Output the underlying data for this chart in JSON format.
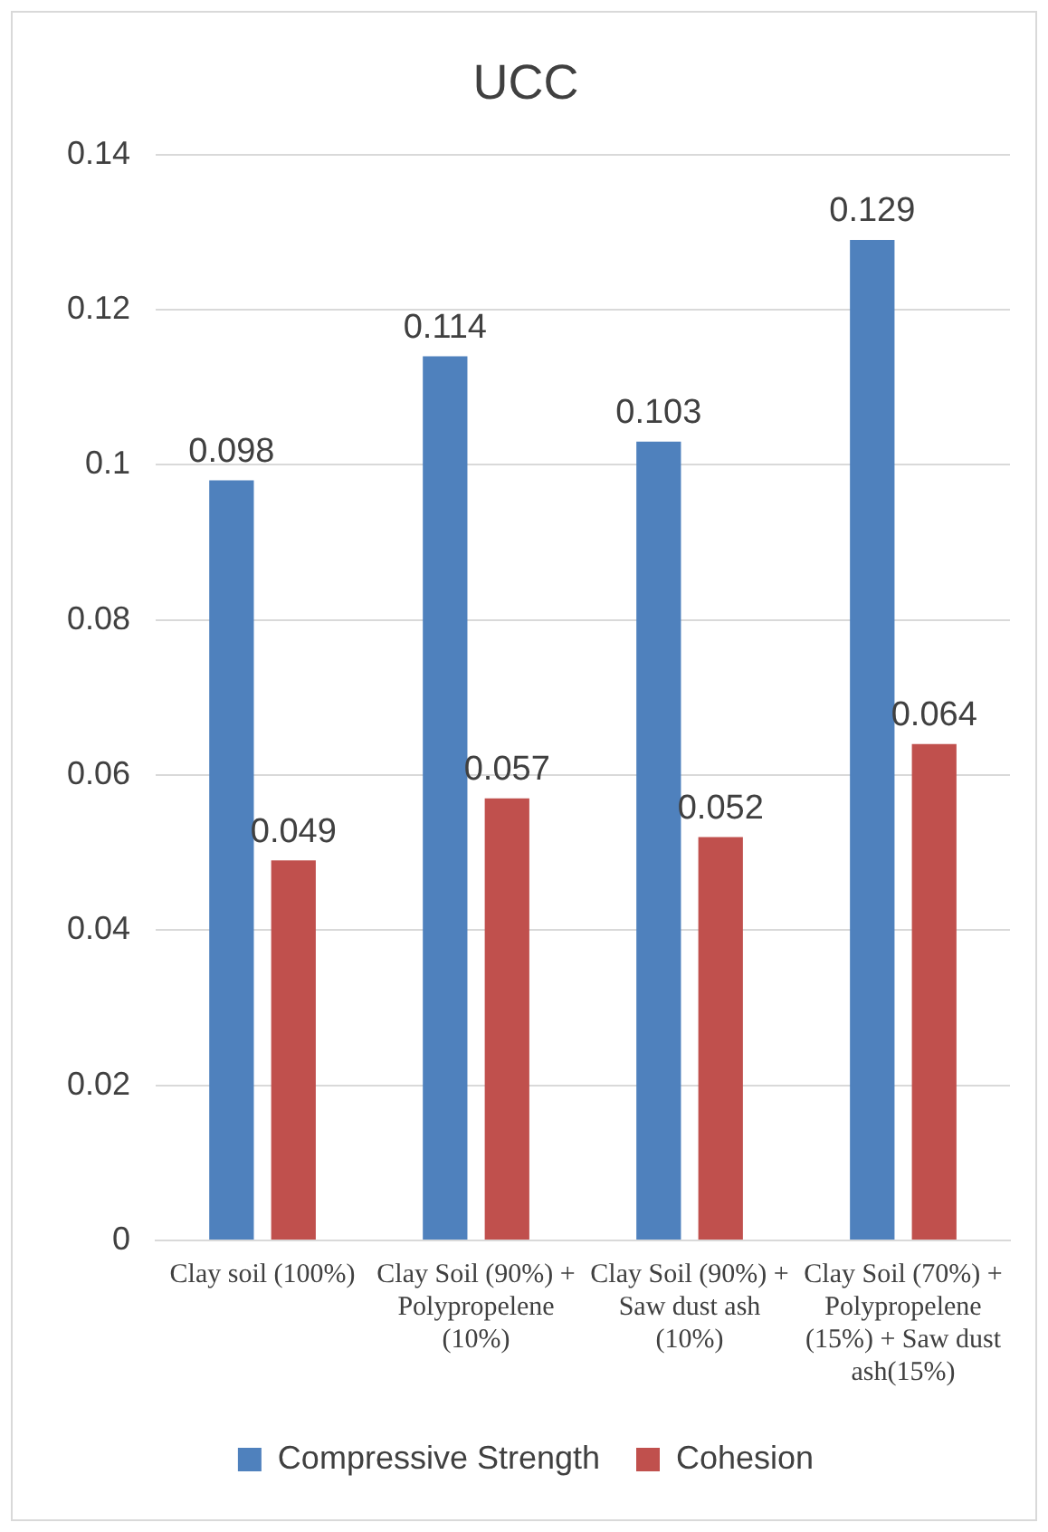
{
  "chart_data": {
    "type": "bar",
    "title": "UCC",
    "categories": [
      "Clay soil (100%)",
      "Clay Soil (90%) + Polypropelene (10%)",
      "Clay Soil (90%) + Saw dust ash (10%)",
      "Clay Soil (70%) + Polypropelene (15%) + Saw dust ash(15%)"
    ],
    "series": [
      {
        "name": "Compressive Strength",
        "color": "#4f81bd",
        "values": [
          0.098,
          0.114,
          0.103,
          0.129
        ]
      },
      {
        "name": "Cohesion",
        "color": "#c0504d",
        "values": [
          0.049,
          0.057,
          0.052,
          0.064
        ]
      }
    ],
    "ylim": [
      0,
      0.14
    ],
    "yticks": [
      0,
      0.02,
      0.04,
      0.06,
      0.08,
      0.1,
      0.12,
      0.14
    ],
    "grid": "y",
    "legend": "bottom",
    "data_labels": true
  }
}
